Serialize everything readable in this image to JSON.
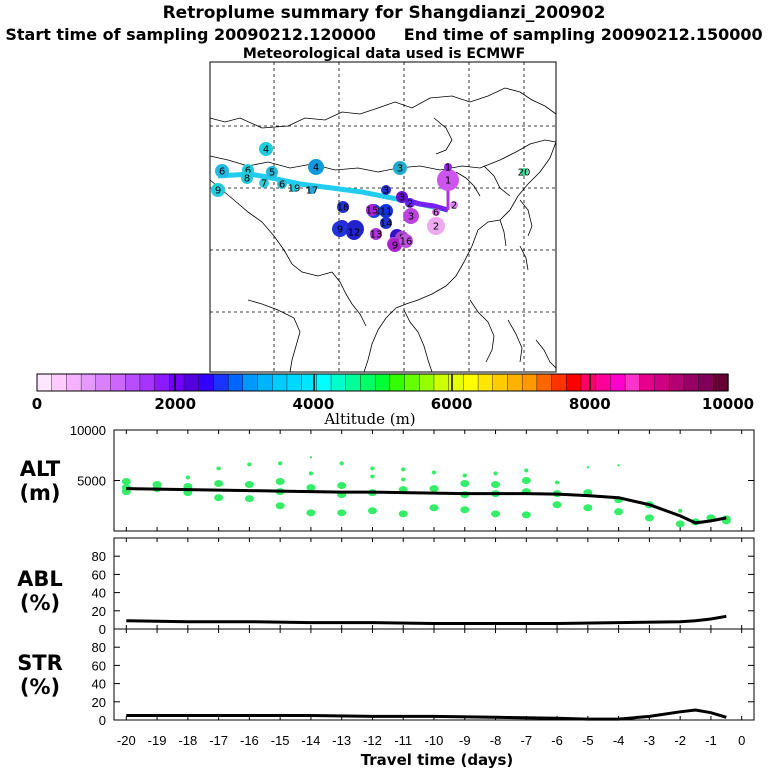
{
  "header": {
    "title": "Retroplume summary for Shangdianzi_200902",
    "start_label": "Start time of sampling 20090212.120000",
    "end_label": "End time of sampling 20090212.150000",
    "met_label": "Meteorological data used is ECMWF"
  },
  "colorbar": {
    "label": "Altitude (m)",
    "tick_labels": [
      "0",
      "2000",
      "4000",
      "6000",
      "8000",
      "10000"
    ],
    "colors": [
      "#ffe6ff",
      "#ffccff",
      "#f5b3ff",
      "#e699ff",
      "#d980ff",
      "#cc66ff",
      "#b84dff",
      "#a633ff",
      "#8c1aff",
      "#7300ff",
      "#5200e0",
      "#3300ff",
      "#1a33ff",
      "#0066ff",
      "#0099ff",
      "#00b3ff",
      "#00ccff",
      "#00d9ff",
      "#00e6ff",
      "#00ffff",
      "#00ffcc",
      "#00ff99",
      "#00ff66",
      "#00ff33",
      "#33ff00",
      "#66ff00",
      "#99ff00",
      "#ccff00",
      "#e6ff00",
      "#ffff00",
      "#ffe600",
      "#ffcc00",
      "#ffb300",
      "#ff9900",
      "#ff6600",
      "#ff3300",
      "#ff0000",
      "#ff0066",
      "#ff0099",
      "#ff00cc",
      "#ff33cc",
      "#e6008c",
      "#cc0080",
      "#b30073",
      "#990066",
      "#800059",
      "#660033"
    ]
  },
  "map": {
    "points": [
      {
        "label": "1",
        "color": "#cc55ee"
      },
      {
        "label": "1",
        "color": "#9922ee"
      },
      {
        "label": "2",
        "color": "#eeaaee"
      },
      {
        "label": "2",
        "color": "#6622ee"
      },
      {
        "label": "2",
        "color": "#dd88ee"
      },
      {
        "label": "3",
        "color": "#6611cc"
      },
      {
        "label": "3",
        "color": "#2233cc"
      },
      {
        "label": "3",
        "color": "#bb44dd"
      },
      {
        "label": "3",
        "color": "#22aacc"
      },
      {
        "label": "4",
        "color": "#22ccdd"
      },
      {
        "label": "4",
        "color": "#1199dd"
      },
      {
        "label": "4",
        "color": "#3311cc"
      },
      {
        "label": "5",
        "color": "#22bbdd"
      },
      {
        "label": "5",
        "color": "#2222cc"
      },
      {
        "label": "5",
        "color": "#aa44cc"
      },
      {
        "label": "6",
        "color": "#22bbdd"
      },
      {
        "label": "6",
        "color": "#22ccdd"
      },
      {
        "label": "6",
        "color": "#33bbdd"
      },
      {
        "label": "6",
        "color": "#dd77ee"
      },
      {
        "label": "7",
        "color": "#33ccdd"
      },
      {
        "label": "7",
        "color": "#3322bb"
      },
      {
        "label": "8",
        "color": "#22ccdd"
      },
      {
        "label": "8",
        "color": "#bb44dd"
      },
      {
        "label": "9",
        "color": "#22ccdd"
      },
      {
        "label": "9",
        "color": "#2233dd"
      },
      {
        "label": "9",
        "color": "#aa22cc"
      },
      {
        "label": "10",
        "color": "#1144dd"
      },
      {
        "label": "11",
        "color": "#1133dd"
      },
      {
        "label": "12",
        "color": "#2222cc"
      },
      {
        "label": "13",
        "color": "#aa33dd"
      },
      {
        "label": "14",
        "color": "#2233cc"
      },
      {
        "label": "15",
        "color": "#aa22dd"
      },
      {
        "label": "16",
        "color": "#bb55dd"
      },
      {
        "label": "17",
        "color": "#22aadd"
      },
      {
        "label": "18",
        "color": "#2233cc"
      },
      {
        "label": "19",
        "color": "#22ccdd"
      },
      {
        "label": "20",
        "color": "#33dd99"
      }
    ]
  },
  "chart_data": [
    {
      "type": "line",
      "panel": "ALT",
      "ylabel_lines": [
        "ALT",
        "(m)"
      ],
      "ylim": [
        0,
        10000
      ],
      "yticks": [
        0,
        5000,
        10000
      ],
      "ytick_labels": [
        "",
        "5000",
        "10000"
      ],
      "x": [
        -20,
        -19,
        -18,
        -17,
        -16,
        -15,
        -14,
        -13,
        -12,
        -11,
        -10,
        -9,
        -8,
        -7,
        -6,
        -5,
        -4,
        -3,
        -2,
        -1.5,
        -1,
        -0.5
      ],
      "values": [
        4200,
        4150,
        4100,
        4050,
        4000,
        3950,
        3900,
        3850,
        3850,
        3800,
        3750,
        3700,
        3700,
        3700,
        3650,
        3500,
        3300,
        2600,
        1500,
        800,
        1000,
        1300
      ],
      "scatter_x": [
        -20,
        -20,
        -20,
        -19,
        -19,
        -18,
        -18,
        -18,
        -17,
        -17,
        -17,
        -16,
        -16,
        -16,
        -15,
        -15,
        -15,
        -15,
        -14,
        -14,
        -14,
        -14,
        -13,
        -13,
        -13,
        -13,
        -12,
        -12,
        -12,
        -12,
        -11,
        -11,
        -11,
        -11,
        -10,
        -10,
        -10,
        -9,
        -9,
        -9,
        -9,
        -8,
        -8,
        -8,
        -8,
        -7,
        -7,
        -7,
        -7,
        -6,
        -6,
        -6,
        -5,
        -5,
        -5,
        -4,
        -4,
        -4,
        -3,
        -3,
        -2,
        -2,
        -1.5,
        -1,
        -0.5,
        -0.5
      ],
      "scatter_y": [
        4900,
        4300,
        3900,
        4600,
        4200,
        5300,
        4400,
        3800,
        6200,
        4700,
        3300,
        6600,
        4600,
        3200,
        6700,
        4900,
        3900,
        2500,
        7300,
        5700,
        4300,
        1800,
        6700,
        4500,
        3600,
        1800,
        6200,
        5400,
        3800,
        2000,
        6100,
        5100,
        4100,
        1700,
        5800,
        4200,
        2300,
        5500,
        4700,
        3600,
        2100,
        5700,
        4600,
        3700,
        1700,
        6000,
        5000,
        3900,
        1600,
        4800,
        3700,
        2600,
        6300,
        3800,
        2300,
        6500,
        3100,
        1900,
        2600,
        1300,
        2000,
        700,
        900,
        1300,
        1200,
        1000
      ],
      "scatter_size": [
        3,
        3,
        3,
        3,
        3,
        2,
        3,
        3,
        2,
        3,
        3,
        2,
        3,
        3,
        2,
        3,
        3,
        3,
        1,
        2,
        3,
        3,
        2,
        3,
        3,
        3,
        2,
        2,
        3,
        3,
        2,
        2,
        3,
        3,
        2,
        3,
        3,
        2,
        3,
        3,
        3,
        2,
        3,
        3,
        3,
        2,
        3,
        3,
        3,
        2,
        3,
        3,
        1,
        3,
        3,
        1,
        3,
        3,
        3,
        3,
        2,
        3,
        3,
        3,
        3,
        3
      ],
      "scatter_color": "#33ee66"
    },
    {
      "type": "line",
      "panel": "ABL",
      "ylabel_lines": [
        "ABL",
        "(%)"
      ],
      "ylim": [
        0,
        100
      ],
      "yticks": [
        0,
        20,
        40,
        60,
        80
      ],
      "ytick_labels": [
        "0",
        "20",
        "40",
        "60",
        "80"
      ],
      "x": [
        -20,
        -18,
        -16,
        -14,
        -12,
        -10,
        -8,
        -6,
        -4,
        -2,
        -1.5,
        -1,
        -0.5
      ],
      "values": [
        9,
        8,
        8,
        7,
        7,
        6,
        6,
        6,
        7,
        8,
        9,
        11,
        14
      ]
    },
    {
      "type": "line",
      "panel": "STR",
      "ylabel_lines": [
        "STR",
        "(%)"
      ],
      "ylim": [
        0,
        100
      ],
      "yticks": [
        0,
        20,
        40,
        60,
        80
      ],
      "ytick_labels": [
        "0",
        "20",
        "40",
        "60",
        "80"
      ],
      "xlabel": "Travel time (days)",
      "xticks": [
        -20,
        -19,
        -18,
        -17,
        -16,
        -15,
        -14,
        -13,
        -12,
        -11,
        -10,
        -9,
        -8,
        -7,
        -6,
        -5,
        -4,
        -3,
        -2,
        -1,
        0
      ],
      "xtick_labels": [
        "-20",
        "-19",
        "-18",
        "-17",
        "-16",
        "-15",
        "-14",
        "-13",
        "-12",
        "-11",
        "-10",
        "-9",
        "-8",
        "-7",
        "-6",
        "-5",
        "-4",
        "-3",
        "-2",
        "-1",
        "0"
      ],
      "x": [
        -20,
        -18,
        -16,
        -14,
        -12,
        -10,
        -8,
        -6,
        -5,
        -4,
        -3,
        -2,
        -1.5,
        -1,
        -0.5
      ],
      "values": [
        5,
        5,
        5,
        5,
        4,
        4,
        3,
        2,
        1,
        1,
        4,
        9,
        11,
        8,
        3
      ]
    }
  ]
}
